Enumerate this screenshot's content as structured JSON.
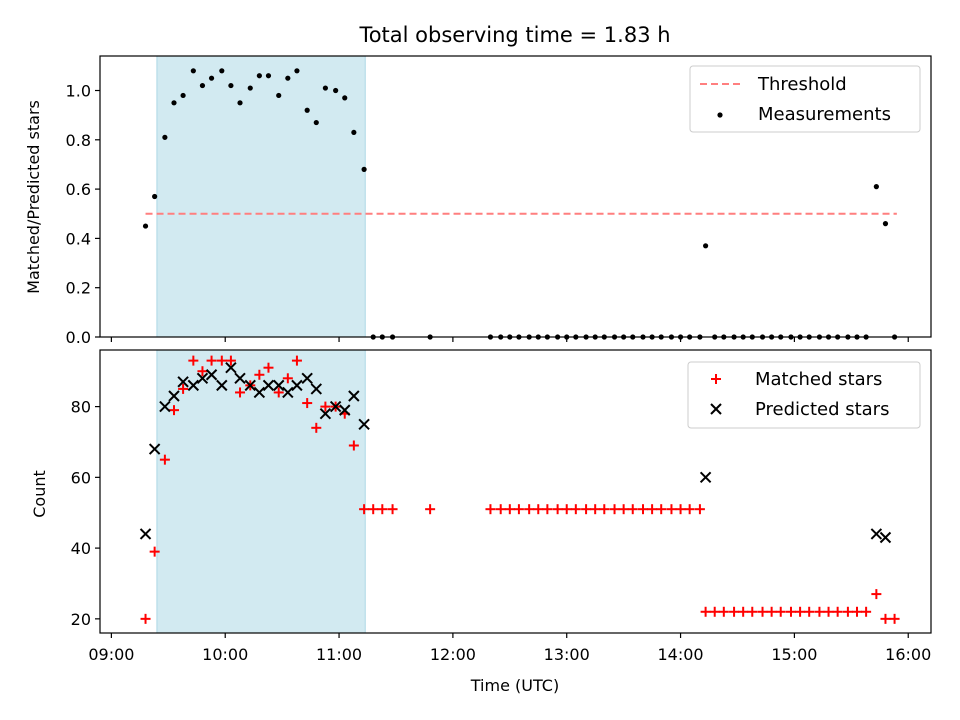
{
  "figure": {
    "title": "Total observing time = 1.83 h",
    "xlabel": "Time (UTC)",
    "x_ticks": [
      "09:00",
      "10:00",
      "11:00",
      "12:00",
      "13:00",
      "14:00",
      "15:00",
      "16:00"
    ],
    "x_range_hours": [
      8.9,
      16.2
    ],
    "shaded_span_hours": [
      9.4,
      11.23
    ],
    "shade_color": "#add8e6"
  },
  "chart_data": [
    {
      "type": "scatter",
      "ylabel": "Matched/Predicted stars",
      "ylim": [
        0,
        1.14
      ],
      "y_ticks": [
        "0.0",
        "0.2",
        "0.4",
        "0.6",
        "0.8",
        "1.0"
      ],
      "legend_position": "top-right",
      "threshold": {
        "name": "Threshold",
        "value": 0.5,
        "x_range": [
          9.3,
          15.9
        ],
        "color": "#ff7f7f",
        "style": "dashed"
      },
      "series": [
        {
          "name": "Measurements",
          "color": "#000000",
          "x": [
            9.3,
            9.38,
            9.47,
            9.55,
            9.63,
            9.72,
            9.8,
            9.88,
            9.97,
            10.05,
            10.13,
            10.22,
            10.3,
            10.38,
            10.47,
            10.55,
            10.63,
            10.72,
            10.8,
            10.88,
            10.97,
            11.05,
            11.13,
            11.22,
            11.3,
            11.38,
            11.47,
            11.8,
            12.33,
            12.42,
            12.5,
            12.58,
            12.67,
            12.75,
            12.83,
            12.92,
            13.0,
            13.08,
            13.17,
            13.25,
            13.33,
            13.42,
            13.5,
            13.58,
            13.67,
            13.75,
            13.83,
            13.92,
            14.0,
            14.08,
            14.17,
            14.22,
            14.3,
            14.38,
            14.47,
            14.55,
            14.63,
            14.72,
            14.8,
            14.88,
            14.97,
            15.05,
            15.13,
            15.22,
            15.3,
            15.38,
            15.47,
            15.55,
            15.63,
            15.72,
            15.8,
            15.88
          ],
          "y": [
            0.45,
            0.57,
            0.81,
            0.95,
            0.98,
            1.08,
            1.02,
            1.05,
            1.08,
            1.02,
            0.95,
            1.01,
            1.06,
            1.06,
            0.98,
            1.05,
            1.08,
            0.92,
            0.87,
            1.01,
            1.0,
            0.97,
            0.83,
            0.68,
            0,
            0,
            0,
            0,
            0,
            0,
            0,
            0,
            0,
            0,
            0,
            0,
            0,
            0,
            0,
            0,
            0,
            0,
            0,
            0,
            0,
            0,
            0,
            0,
            0,
            0,
            0,
            0.37,
            0,
            0,
            0,
            0,
            0,
            0,
            0,
            0,
            0,
            0,
            0,
            0,
            0,
            0,
            0,
            0,
            0,
            0.61,
            0.46,
            0
          ]
        }
      ]
    },
    {
      "type": "scatter",
      "ylabel": "Count",
      "ylim": [
        16,
        96
      ],
      "y_ticks": [
        "20",
        "40",
        "60",
        "80"
      ],
      "legend_position": "top-right",
      "series": [
        {
          "name": "Matched stars",
          "color": "#ff0000",
          "marker": "plus",
          "x": [
            9.3,
            9.38,
            9.47,
            9.55,
            9.63,
            9.72,
            9.8,
            9.88,
            9.97,
            10.05,
            10.13,
            10.22,
            10.3,
            10.38,
            10.47,
            10.55,
            10.63,
            10.72,
            10.8,
            10.88,
            10.97,
            11.05,
            11.13,
            11.22,
            11.3,
            11.38,
            11.47,
            11.8,
            12.33,
            12.42,
            12.5,
            12.58,
            12.67,
            12.75,
            12.83,
            12.92,
            13.0,
            13.08,
            13.17,
            13.25,
            13.33,
            13.42,
            13.5,
            13.58,
            13.67,
            13.75,
            13.83,
            13.92,
            14.0,
            14.08,
            14.17,
            14.22,
            14.3,
            14.38,
            14.47,
            14.55,
            14.63,
            14.72,
            14.8,
            14.88,
            14.97,
            15.05,
            15.13,
            15.22,
            15.3,
            15.38,
            15.47,
            15.55,
            15.63,
            15.72,
            15.8,
            15.88
          ],
          "y": [
            20,
            39,
            65,
            79,
            85,
            93,
            90,
            93,
            93,
            93,
            84,
            86,
            89,
            91,
            84,
            88,
            93,
            81,
            74,
            80,
            80,
            78,
            69,
            51,
            51,
            51,
            51,
            51,
            51,
            51,
            51,
            51,
            51,
            51,
            51,
            51,
            51,
            51,
            51,
            51,
            51,
            51,
            51,
            51,
            51,
            51,
            51,
            51,
            51,
            51,
            51,
            22,
            22,
            22,
            22,
            22,
            22,
            22,
            22,
            22,
            22,
            22,
            22,
            22,
            22,
            22,
            22,
            22,
            22,
            27,
            20,
            20
          ]
        },
        {
          "name": "Predicted stars",
          "color": "#000000",
          "marker": "x",
          "x": [
            9.3,
            9.38,
            9.47,
            9.55,
            9.63,
            9.72,
            9.8,
            9.88,
            9.97,
            10.05,
            10.13,
            10.22,
            10.3,
            10.38,
            10.47,
            10.55,
            10.63,
            10.72,
            10.8,
            10.88,
            10.97,
            11.05,
            11.13,
            11.22,
            14.22,
            15.72,
            15.8
          ],
          "y": [
            44,
            68,
            80,
            83,
            87,
            86,
            88,
            89,
            86,
            91,
            88,
            86,
            84,
            86,
            86,
            84,
            86,
            88,
            85,
            78,
            80,
            79,
            83,
            75,
            60,
            44,
            43
          ]
        }
      ]
    }
  ]
}
